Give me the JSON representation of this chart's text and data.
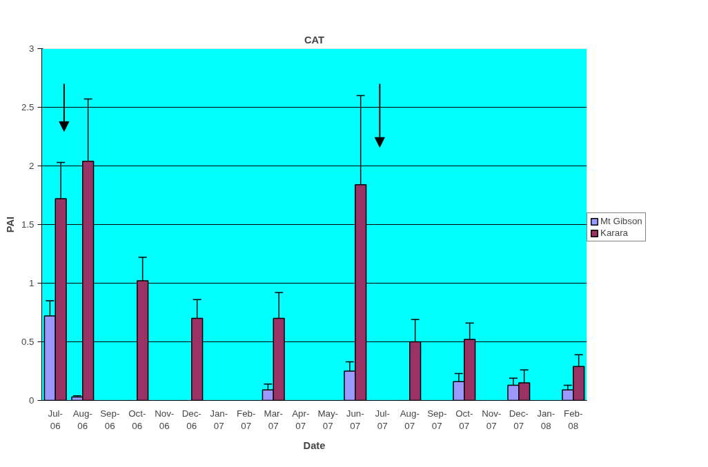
{
  "chart_data": {
    "type": "bar",
    "title": "CAT",
    "xlabel": "Date",
    "ylabel": "PAI",
    "categories": [
      "Jul-06",
      "Aug-06",
      "Sep-06",
      "Oct-06",
      "Nov-06",
      "Dec-06",
      "Jan-07",
      "Feb-07",
      "Mar-07",
      "Apr-07",
      "May-07",
      "Jun-07",
      "Jul-07",
      "Aug-07",
      "Sep-07",
      "Oct-07",
      "Nov-07",
      "Dec-07",
      "Jan-08",
      "Feb-08"
    ],
    "series": [
      {
        "name": "Mt Gibson",
        "color": "#9999ff",
        "values": [
          0.72,
          0.03,
          null,
          0,
          null,
          0,
          null,
          null,
          0.09,
          null,
          null,
          0.25,
          null,
          0,
          null,
          0.16,
          null,
          0.13,
          null,
          0.09
        ],
        "errors": [
          [
            0.72,
            0.85
          ],
          [
            0.03,
            0.04
          ],
          null,
          null,
          null,
          null,
          null,
          null,
          [
            0.09,
            0.14
          ],
          null,
          null,
          [
            0.25,
            0.33
          ],
          null,
          null,
          null,
          [
            0.16,
            0.23
          ],
          null,
          [
            0.13,
            0.19
          ],
          null,
          [
            0.09,
            0.13
          ]
        ]
      },
      {
        "name": "Karara",
        "color": "#993366",
        "values": [
          1.72,
          2.04,
          null,
          1.02,
          null,
          0.7,
          null,
          null,
          0.7,
          null,
          null,
          1.84,
          null,
          0.5,
          null,
          0.52,
          null,
          0.15,
          null,
          0.29
        ],
        "errors": [
          [
            1.72,
            2.03
          ],
          [
            2.04,
            2.57
          ],
          null,
          [
            1.02,
            1.22
          ],
          null,
          [
            0.7,
            0.86
          ],
          null,
          null,
          [
            0.7,
            0.92
          ],
          null,
          null,
          [
            1.84,
            2.6
          ],
          null,
          [
            0.5,
            0.69
          ],
          null,
          [
            0.52,
            0.66
          ],
          null,
          [
            0.15,
            0.26
          ],
          null,
          [
            0.29,
            0.39
          ]
        ]
      }
    ],
    "ylim": [
      0,
      3
    ],
    "yticks": [
      0,
      0.5,
      1,
      1.5,
      2,
      2.5,
      3
    ],
    "grid": "y",
    "legend": "right"
  }
}
